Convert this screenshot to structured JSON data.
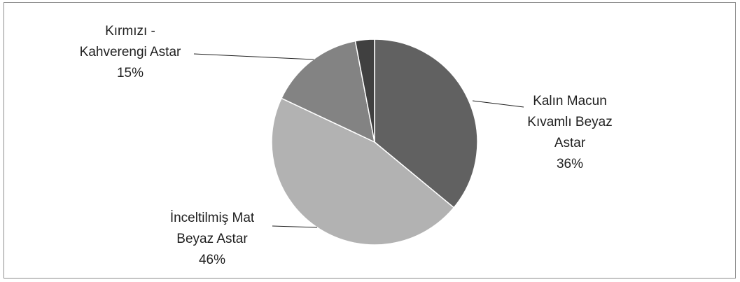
{
  "chart_data": {
    "type": "pie",
    "title": "",
    "start_angle_deg": 0,
    "direction": "clockwise",
    "slices": [
      {
        "label_lines": [
          "Kalın Macun",
          "Kıvamlı Beyaz",
          "Astar"
        ],
        "percent_label": "36%",
        "value": 36,
        "color": "#616161"
      },
      {
        "label_lines": [
          "İnceltilmiş Mat",
          "Beyaz Astar"
        ],
        "percent_label": "46%",
        "value": 46,
        "color": "#b2b2b2"
      },
      {
        "label_lines": [
          "Kırmızı -",
          "Kahverengi Astar"
        ],
        "percent_label": "15%",
        "value": 15,
        "color": "#838383"
      },
      {
        "label_lines": [],
        "percent_label": "",
        "value": 3,
        "color": "#404040"
      }
    ],
    "legend": "none",
    "slice_border_color": "#ffffff",
    "leader_line_color": "#1f1f1f"
  }
}
